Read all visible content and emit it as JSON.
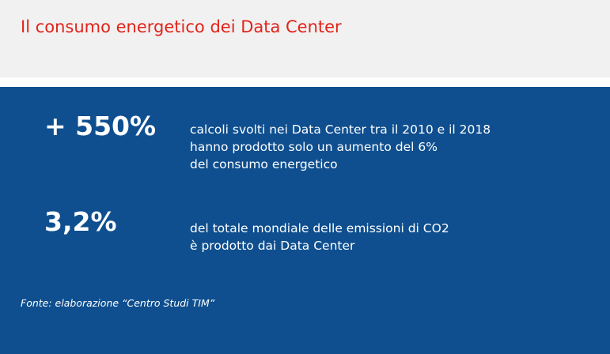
{
  "header": {
    "title": "Il consumo energetico dei Data Center"
  },
  "stats": [
    {
      "value": "+ 550%",
      "lines": [
        "calcoli svolti nei Data Center tra il 2010 e il 2018",
        "hanno prodotto solo un aumento del 6%",
        "del consumo energetico"
      ]
    },
    {
      "value": "3,2%",
      "lines": [
        "del totale mondiale delle emissioni di CO2",
        "è prodotto dai Data Center"
      ]
    }
  ],
  "source": "Fonte: elaborazione “Centro Studi TIM”",
  "colors": {
    "title": "#e2231a",
    "panel": "#0f4f8f",
    "header_bg": "#f1f1f1",
    "text": "#ffffff"
  }
}
